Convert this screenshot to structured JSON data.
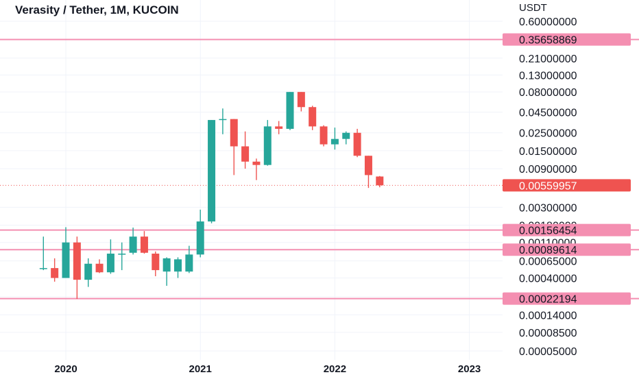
{
  "chart_data": {
    "type": "candlestick",
    "title": "Verasity / Tether, 1M, KUCOIN",
    "unit": "USDT",
    "y_scale": "log",
    "y_ticks": [
      "0.60000000",
      "0.21000000",
      "0.13000000",
      "0.08000000",
      "0.04500000",
      "0.02500000",
      "0.01500000",
      "0.00900000",
      "0.00300000",
      "0.00180000",
      "0.00110000",
      "0.00065000",
      "0.00040000",
      "0.00023400",
      "0.00014000",
      "0.00008500",
      "0.00005000"
    ],
    "x_ticks": [
      "2020",
      "2021",
      "2022",
      "2023"
    ],
    "colors": {
      "up": "#26a69a",
      "down": "#ef5350",
      "level": "#f48fb1",
      "level_label": "#f48fb1",
      "last": "#ef5350",
      "grid": "#f0f3fa"
    },
    "levels": [
      {
        "value": 0.35658869,
        "label": "0.35658869"
      },
      {
        "value": 0.00156454,
        "label": "0.00156454"
      },
      {
        "value": 0.00089614,
        "label": "0.00089614"
      },
      {
        "value": 0.00022194,
        "label": "0.00022194"
      }
    ],
    "last_price": {
      "value": 0.00559957,
      "label": "0.00559957"
    },
    "candles": [
      {
        "date": "2019-11",
        "open": 0.00052,
        "high": 0.0013,
        "low": 0.0005,
        "close": 0.00053
      },
      {
        "date": "2019-12",
        "open": 0.00053,
        "high": 0.0007,
        "low": 0.00036,
        "close": 0.0004
      },
      {
        "date": "2020-01",
        "open": 0.0004,
        "high": 0.0017,
        "low": 0.0004,
        "close": 0.0011
      },
      {
        "date": "2020-02",
        "open": 0.0011,
        "high": 0.0013,
        "low": 0.00022,
        "close": 0.00038
      },
      {
        "date": "2020-03",
        "open": 0.00038,
        "high": 0.0007,
        "low": 0.00031,
        "close": 0.0006
      },
      {
        "date": "2020-04",
        "open": 0.0006,
        "high": 0.00068,
        "low": 0.00046,
        "close": 0.00047
      },
      {
        "date": "2020-05",
        "open": 0.00047,
        "high": 0.0012,
        "low": 0.00045,
        "close": 0.0008
      },
      {
        "date": "2020-06",
        "open": 0.0008,
        "high": 0.0011,
        "low": 0.0005,
        "close": 0.0008
      },
      {
        "date": "2020-07",
        "open": 0.00082,
        "high": 0.00168,
        "low": 0.00078,
        "close": 0.0013
      },
      {
        "date": "2020-08",
        "open": 0.0013,
        "high": 0.00152,
        "low": 0.0008,
        "close": 0.00082
      },
      {
        "date": "2020-09",
        "open": 0.0008,
        "high": 0.00085,
        "low": 0.00042,
        "close": 0.0005
      },
      {
        "date": "2020-10",
        "open": 0.00048,
        "high": 0.00072,
        "low": 0.00032,
        "close": 0.0007
      },
      {
        "date": "2020-11",
        "open": 0.00048,
        "high": 0.00072,
        "low": 0.0004,
        "close": 0.00068
      },
      {
        "date": "2020-12",
        "open": 0.00048,
        "high": 0.001,
        "low": 0.00046,
        "close": 0.00078
      },
      {
        "date": "2021-01",
        "open": 0.00078,
        "high": 0.0028,
        "low": 0.00072,
        "close": 0.002
      },
      {
        "date": "2021-02",
        "open": 0.002,
        "high": 0.036,
        "low": 0.0019,
        "close": 0.036
      },
      {
        "date": "2021-03",
        "open": 0.036,
        "high": 0.05,
        "low": 0.024,
        "close": 0.037
      },
      {
        "date": "2021-04",
        "open": 0.037,
        "high": 0.037,
        "low": 0.0075,
        "close": 0.017
      },
      {
        "date": "2021-05",
        "open": 0.017,
        "high": 0.026,
        "low": 0.009,
        "close": 0.011
      },
      {
        "date": "2021-06",
        "open": 0.011,
        "high": 0.012,
        "low": 0.0065,
        "close": 0.01
      },
      {
        "date": "2021-07",
        "open": 0.01,
        "high": 0.036,
        "low": 0.0098,
        "close": 0.03
      },
      {
        "date": "2021-08",
        "open": 0.03,
        "high": 0.035,
        "low": 0.024,
        "close": 0.028
      },
      {
        "date": "2021-09",
        "open": 0.028,
        "high": 0.08,
        "low": 0.027,
        "close": 0.08
      },
      {
        "date": "2021-10",
        "open": 0.08,
        "high": 0.08,
        "low": 0.046,
        "close": 0.052
      },
      {
        "date": "2021-11",
        "open": 0.052,
        "high": 0.054,
        "low": 0.027,
        "close": 0.03
      },
      {
        "date": "2021-12",
        "open": 0.03,
        "high": 0.031,
        "low": 0.017,
        "close": 0.018
      },
      {
        "date": "2022-01",
        "open": 0.018,
        "high": 0.029,
        "low": 0.0155,
        "close": 0.021
      },
      {
        "date": "2022-02",
        "open": 0.021,
        "high": 0.026,
        "low": 0.018,
        "close": 0.025
      },
      {
        "date": "2022-03",
        "open": 0.025,
        "high": 0.028,
        "low": 0.0125,
        "close": 0.013
      },
      {
        "date": "2022-04",
        "open": 0.013,
        "high": 0.013,
        "low": 0.0052,
        "close": 0.0075
      },
      {
        "date": "2022-05",
        "open": 0.0072,
        "high": 0.0073,
        "low": 0.0053,
        "close": 0.0056
      }
    ]
  }
}
